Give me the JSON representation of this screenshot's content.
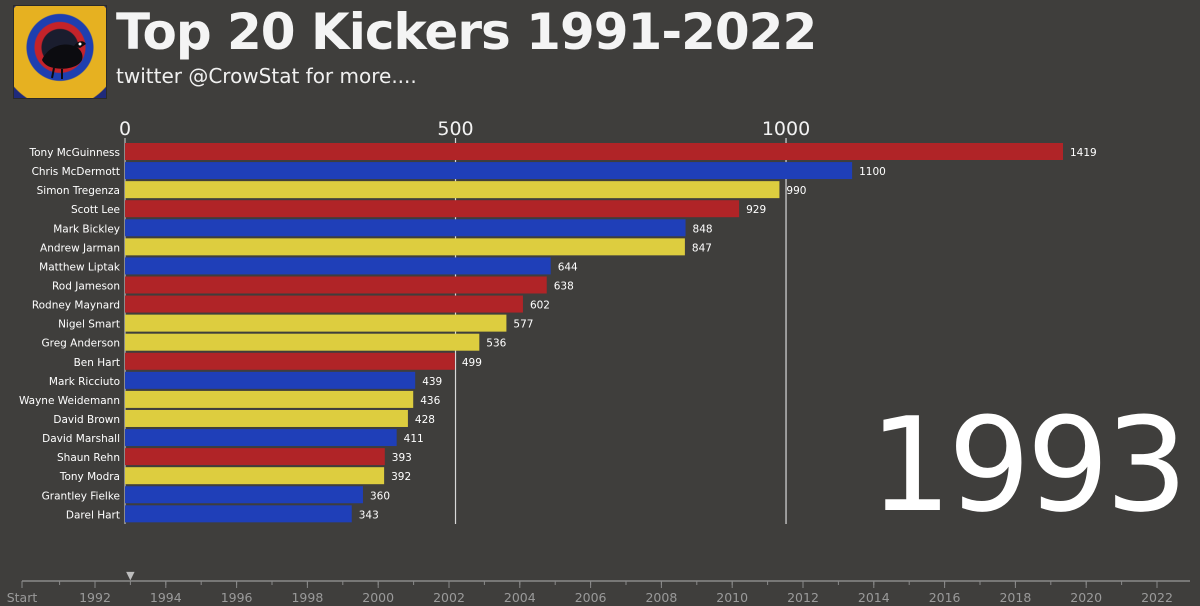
{
  "header": {
    "title": "Top 20 Kickers 1991-2022",
    "subtitle": "twitter @CrowStat for more...."
  },
  "current_year": "1993",
  "colors": {
    "background": "#3f3e3c",
    "red": "#b02427",
    "blue": "#1f3fb8",
    "yellow": "#ddcd3f"
  },
  "chart_data": {
    "type": "bar",
    "orientation": "horizontal",
    "title": "Top 20 Kickers 1991-2022",
    "xlim": [
      0,
      1450
    ],
    "x_ticks": [
      0,
      500,
      1000
    ],
    "categories": [
      "Tony McGuinness",
      "Chris McDermott",
      "Simon Tregenza",
      "Scott Lee",
      "Mark Bickley",
      "Andrew Jarman",
      "Matthew Liptak",
      "Rod Jameson",
      "Rodney Maynard",
      "Nigel Smart",
      "Greg Anderson",
      "Ben Hart",
      "Mark Ricciuto",
      "Wayne Weidemann",
      "David Brown",
      "David Marshall",
      "Shaun Rehn",
      "Tony Modra",
      "Grantley Fielke",
      "Darel Hart"
    ],
    "values": [
      1419,
      1100,
      990,
      929,
      848,
      847,
      644,
      638,
      602,
      577,
      536,
      499,
      439,
      436,
      428,
      411,
      393,
      392,
      360,
      343
    ],
    "bar_colors": [
      "red",
      "blue",
      "yellow",
      "red",
      "blue",
      "yellow",
      "blue",
      "red",
      "red",
      "yellow",
      "yellow",
      "red",
      "blue",
      "yellow",
      "yellow",
      "blue",
      "red",
      "yellow",
      "blue",
      "blue"
    ]
  },
  "timeline": {
    "labels": [
      "Start",
      "1992",
      "1994",
      "1996",
      "1998",
      "2000",
      "2002",
      "2004",
      "2006",
      "2008",
      "2010",
      "2012",
      "2014",
      "2016",
      "2018",
      "2020",
      "2022"
    ],
    "marker_label": "▼",
    "current_year": 1993
  }
}
